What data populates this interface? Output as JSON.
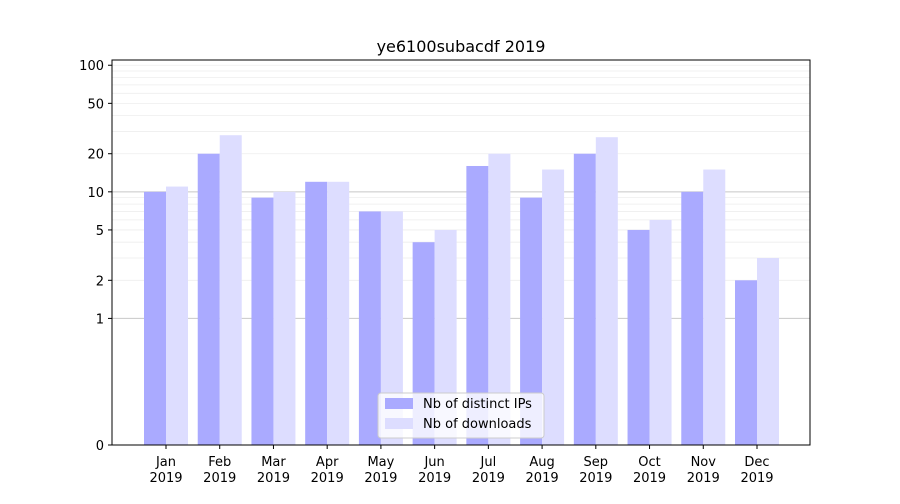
{
  "chart_data": {
    "type": "bar",
    "title": "ye6100subacdf 2019",
    "xlabel": "",
    "ylabel": "",
    "y_scale": "symlog",
    "yticks": [
      0,
      1,
      2,
      5,
      10,
      20,
      50,
      100
    ],
    "ylim": [
      0,
      110
    ],
    "grid": "horizontal",
    "legend_position": "bottom-center",
    "categories": [
      [
        "Jan",
        "2019"
      ],
      [
        "Feb",
        "2019"
      ],
      [
        "Mar",
        "2019"
      ],
      [
        "Apr",
        "2019"
      ],
      [
        "May",
        "2019"
      ],
      [
        "Jun",
        "2019"
      ],
      [
        "Jul",
        "2019"
      ],
      [
        "Aug",
        "2019"
      ],
      [
        "Sep",
        "2019"
      ],
      [
        "Oct",
        "2019"
      ],
      [
        "Nov",
        "2019"
      ],
      [
        "Dec",
        "2019"
      ]
    ],
    "series": [
      {
        "name": "Nb of distinct IPs",
        "color": "#aaaaff",
        "values": [
          10,
          20,
          9,
          12,
          7,
          4,
          16,
          9,
          20,
          5,
          10,
          2
        ]
      },
      {
        "name": "Nb of downloads",
        "color": "#ddddff",
        "values": [
          11,
          28,
          10,
          12,
          7,
          5,
          20,
          15,
          27,
          6,
          15,
          3
        ]
      }
    ]
  }
}
